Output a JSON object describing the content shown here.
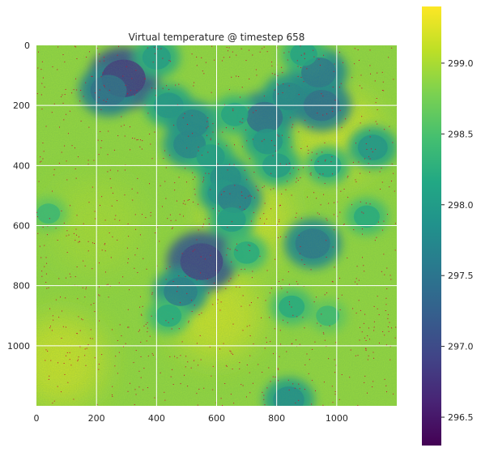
{
  "chart_data": {
    "type": "heatmap",
    "title": "Virtual temperature @ timestep 658",
    "xlabel": "",
    "ylabel": "",
    "xlim": [
      0,
      1200
    ],
    "ylim": [
      1200,
      0
    ],
    "x_ticks": [
      0,
      200,
      400,
      600,
      800,
      1000
    ],
    "y_ticks": [
      0,
      200,
      400,
      600,
      800,
      1000
    ],
    "grid": true,
    "colormap": "viridis",
    "colorbar": {
      "min": 296.3,
      "max": 299.4,
      "ticks": [
        "296.5",
        "297.0",
        "297.5",
        "298.0",
        "298.5",
        "299.0"
      ],
      "tick_values": [
        296.5,
        297.0,
        297.5,
        298.0,
        298.5,
        299.0
      ]
    },
    "background_value": 298.9,
    "cool_pockets": [
      {
        "x": 290,
        "y": 110,
        "value": 296.8
      },
      {
        "x": 240,
        "y": 150,
        "value": 297.4
      },
      {
        "x": 440,
        "y": 200,
        "value": 297.9
      },
      {
        "x": 520,
        "y": 260,
        "value": 297.7
      },
      {
        "x": 510,
        "y": 330,
        "value": 297.7
      },
      {
        "x": 580,
        "y": 370,
        "value": 298.0
      },
      {
        "x": 630,
        "y": 440,
        "value": 297.8
      },
      {
        "x": 620,
        "y": 490,
        "value": 297.9
      },
      {
        "x": 660,
        "y": 510,
        "value": 297.6
      },
      {
        "x": 650,
        "y": 580,
        "value": 298.0
      },
      {
        "x": 760,
        "y": 240,
        "value": 297.4
      },
      {
        "x": 770,
        "y": 320,
        "value": 297.9
      },
      {
        "x": 840,
        "y": 170,
        "value": 297.7
      },
      {
        "x": 950,
        "y": 200,
        "value": 297.4
      },
      {
        "x": 940,
        "y": 90,
        "value": 297.5
      },
      {
        "x": 890,
        "y": 30,
        "value": 298.1
      },
      {
        "x": 1120,
        "y": 340,
        "value": 297.9
      },
      {
        "x": 1100,
        "y": 570,
        "value": 298.2
      },
      {
        "x": 920,
        "y": 660,
        "value": 297.5
      },
      {
        "x": 550,
        "y": 720,
        "value": 296.9
      },
      {
        "x": 480,
        "y": 820,
        "value": 297.6
      },
      {
        "x": 440,
        "y": 900,
        "value": 298.2
      },
      {
        "x": 700,
        "y": 690,
        "value": 298.2
      },
      {
        "x": 850,
        "y": 870,
        "value": 298.2
      },
      {
        "x": 970,
        "y": 900,
        "value": 298.4
      },
      {
        "x": 840,
        "y": 1180,
        "value": 297.8
      },
      {
        "x": 40,
        "y": 560,
        "value": 298.4
      },
      {
        "x": 800,
        "y": 400,
        "value": 298.0
      },
      {
        "x": 970,
        "y": 400,
        "value": 298.1
      },
      {
        "x": 400,
        "y": 40,
        "value": 298.0
      },
      {
        "x": 660,
        "y": 230,
        "value": 298.1
      }
    ],
    "warm_zones": [
      {
        "x": 700,
        "y": 580,
        "value": 299.2
      },
      {
        "x": 600,
        "y": 900,
        "value": 299.2
      },
      {
        "x": 80,
        "y": 1050,
        "value": 299.2
      },
      {
        "x": 200,
        "y": 600,
        "value": 299.0
      },
      {
        "x": 1000,
        "y": 300,
        "value": 299.2
      }
    ]
  }
}
